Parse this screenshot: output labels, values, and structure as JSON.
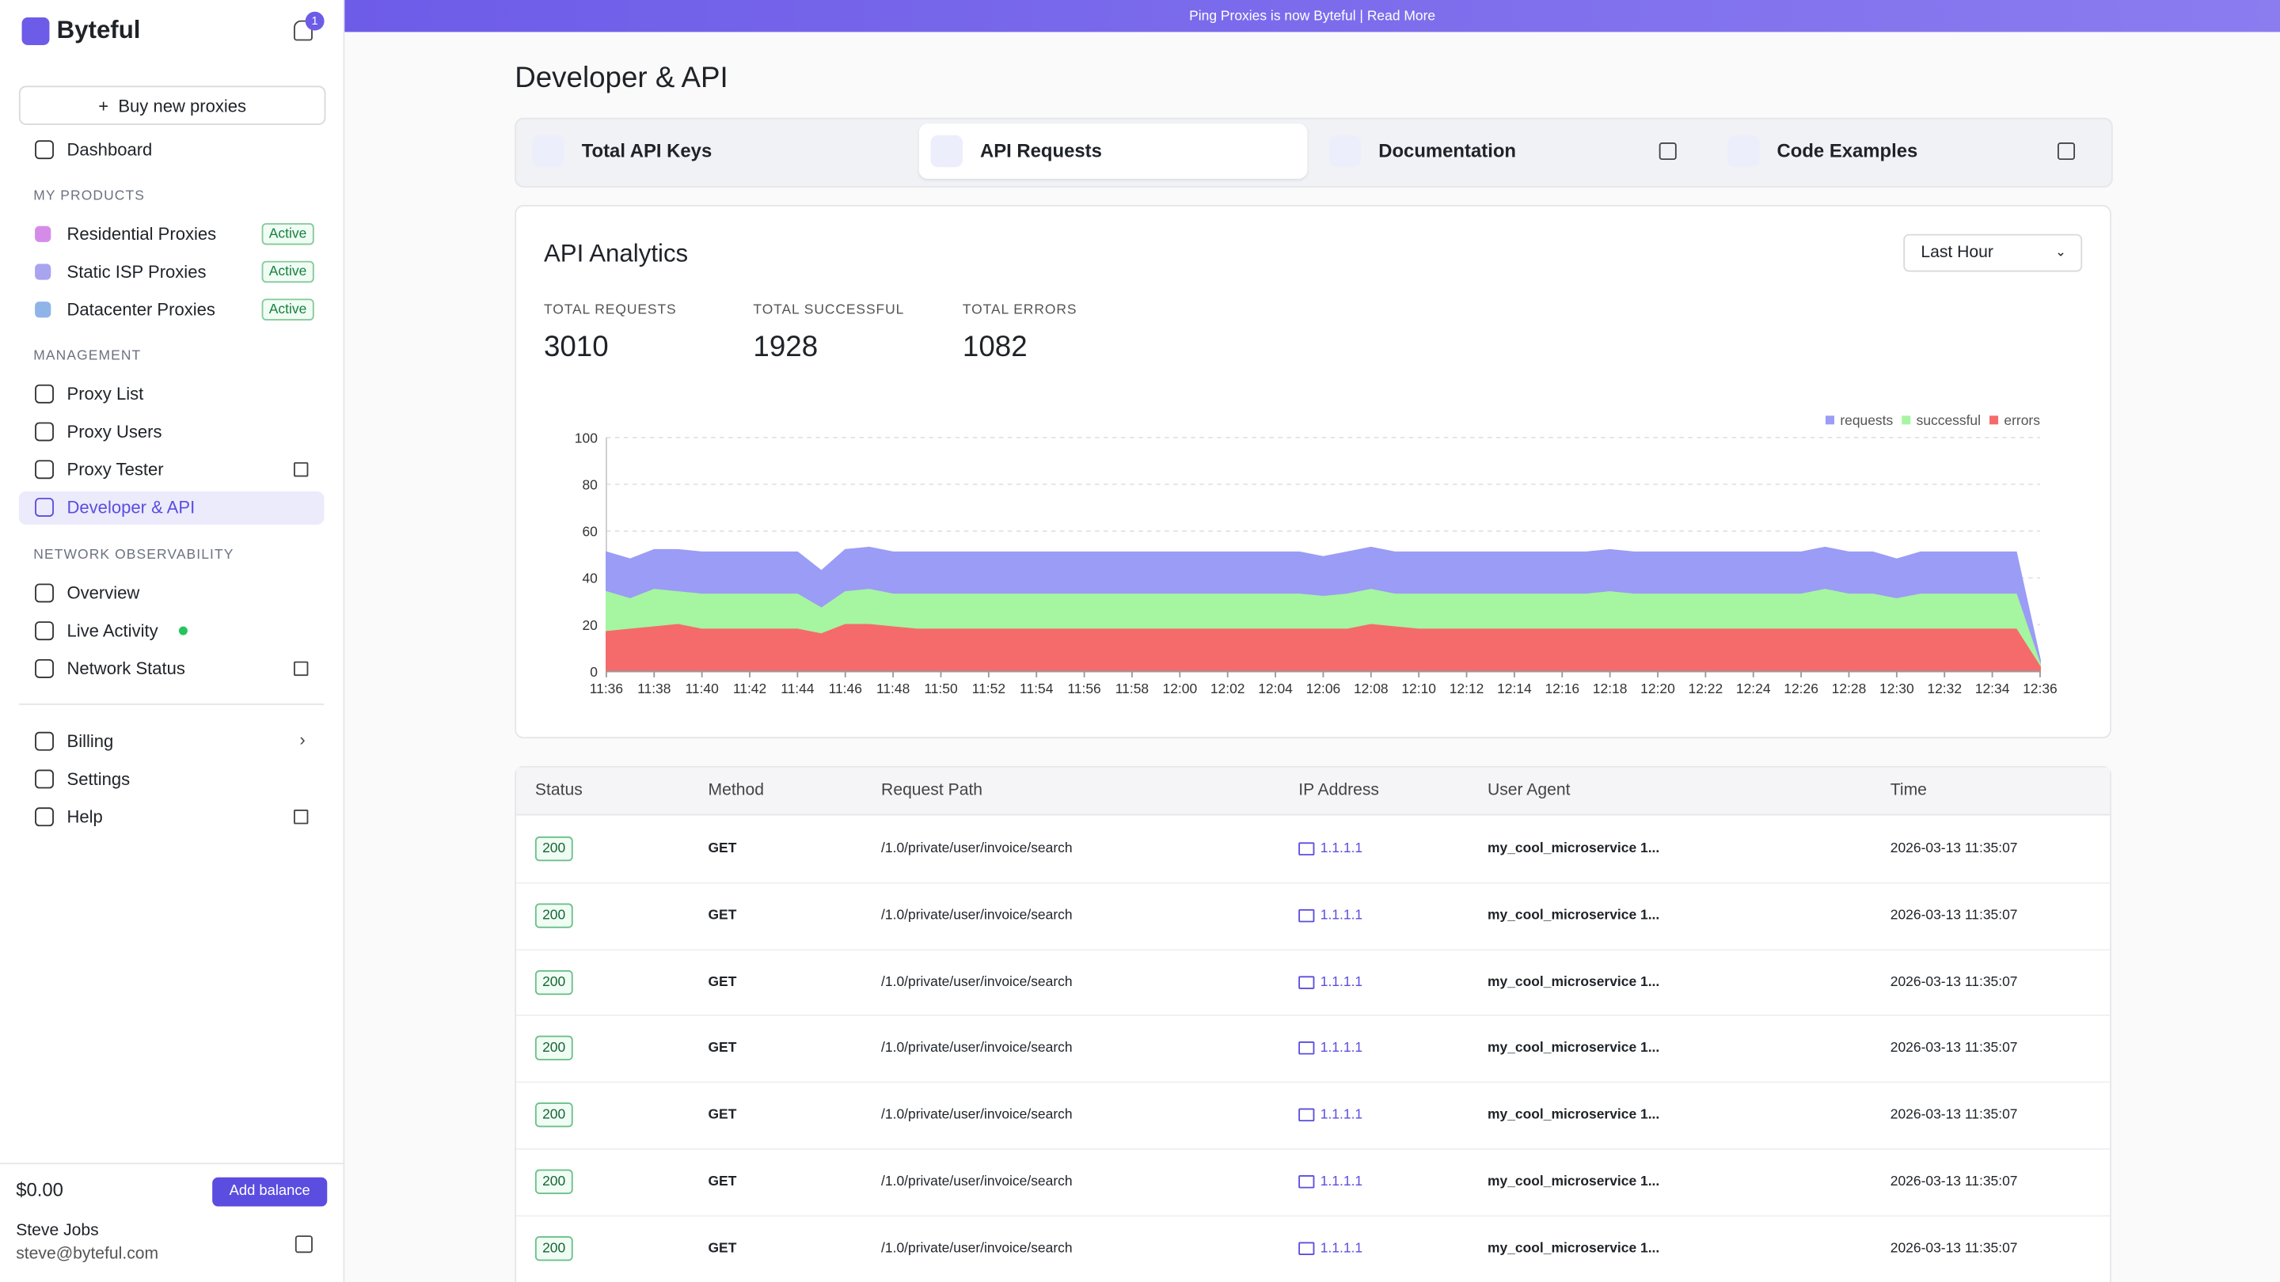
{
  "sidebar": {
    "brand": "Byteful",
    "notifications": 1,
    "buy_button": "Buy new proxies",
    "dashboard": "Dashboard",
    "products": {
      "heading": "MY PRODUCTS",
      "items": [
        {
          "label": "Residential Proxies",
          "badge": "Active"
        },
        {
          "label": "Static ISP Proxies",
          "badge": "Active"
        },
        {
          "label": "Datacenter Proxies",
          "badge": "Active"
        }
      ]
    },
    "management": {
      "heading": "MANAGEMENT",
      "items": [
        "Proxy List",
        "Proxy Users",
        "Proxy Tester",
        "Developer & API"
      ]
    },
    "observability": {
      "heading": "NETWORK OBSERVABILITY",
      "items": [
        "Overview",
        "Live Activity",
        "Network Status"
      ]
    },
    "bottom": [
      "Billing",
      "Settings",
      "Help"
    ],
    "account": {
      "balance": "$0.00",
      "add_balance": "Add balance",
      "name": "Steve Jobs",
      "email": "steve@byteful.com"
    }
  },
  "banner": "Ping Proxies is now Byteful | Read More",
  "page_title": "Developer & API",
  "tabs": [
    "Total API Keys",
    "API Requests",
    "Documentation",
    "Code Examples"
  ],
  "analytics": {
    "title": "API Analytics",
    "range": "Last Hour",
    "stats": [
      {
        "label": "TOTAL REQUESTS",
        "value": 3010
      },
      {
        "label": "TOTAL SUCCESSFUL",
        "value": 1928
      },
      {
        "label": "TOTAL ERRORS",
        "value": 1082
      }
    ]
  },
  "chart_data": {
    "type": "area",
    "categories": [
      "11:36",
      null,
      "11:38",
      null,
      "11:40",
      null,
      "11:42",
      null,
      "11:44",
      null,
      "11:46",
      null,
      "11:48",
      null,
      "11:50",
      null,
      "11:52",
      null,
      "11:54",
      null,
      "11:56",
      null,
      "11:58",
      null,
      "12:00",
      null,
      "12:02",
      null,
      "12:04",
      null,
      "12:06",
      null,
      "12:08",
      null,
      "12:10",
      null,
      "12:12",
      null,
      "12:14",
      null,
      "12:16",
      null,
      "12:18",
      null,
      "12:20",
      null,
      "12:22",
      null,
      "12:24",
      null,
      "12:26",
      null,
      "12:28",
      null,
      "12:30",
      null,
      "12:32",
      null,
      "12:34",
      null,
      "12:36"
    ],
    "series": [
      {
        "name": "requests",
        "color": "#9b9cf5",
        "values": [
          51,
          48,
          52,
          52,
          51,
          51,
          51,
          51,
          51,
          43,
          52,
          53,
          51,
          51,
          51,
          51,
          51,
          51,
          51,
          51,
          51,
          51,
          51,
          51,
          51,
          51,
          51,
          51,
          51,
          51,
          49,
          51,
          53,
          51,
          51,
          51,
          51,
          51,
          51,
          51,
          51,
          51,
          52,
          51,
          51,
          51,
          51,
          51,
          51,
          51,
          51,
          53,
          51,
          51,
          48,
          51,
          51,
          51,
          51,
          51,
          5
        ]
      },
      {
        "name": "successful",
        "color": "#a6f5a0",
        "values": [
          34,
          31,
          35,
          34,
          33,
          33,
          33,
          33,
          33,
          27,
          34,
          35,
          33,
          33,
          33,
          33,
          33,
          33,
          33,
          33,
          33,
          33,
          33,
          33,
          33,
          33,
          33,
          33,
          33,
          33,
          32,
          33,
          35,
          33,
          33,
          33,
          33,
          33,
          33,
          33,
          33,
          33,
          34,
          33,
          33,
          33,
          33,
          33,
          33,
          33,
          33,
          35,
          33,
          33,
          31,
          33,
          33,
          33,
          33,
          33,
          3
        ]
      },
      {
        "name": "errors",
        "color": "#f56b6b",
        "values": [
          17,
          18,
          19,
          20,
          18,
          18,
          18,
          18,
          18,
          16,
          20,
          20,
          19,
          18,
          18,
          18,
          18,
          18,
          18,
          18,
          18,
          18,
          18,
          18,
          18,
          18,
          18,
          18,
          18,
          18,
          18,
          18,
          20,
          19,
          18,
          18,
          18,
          18,
          18,
          18,
          18,
          18,
          18,
          18,
          18,
          18,
          18,
          18,
          18,
          18,
          18,
          18,
          18,
          18,
          18,
          18,
          18,
          18,
          18,
          18,
          2
        ]
      }
    ],
    "ylim": [
      0,
      100
    ],
    "yticks": [
      0,
      20,
      40,
      60,
      80,
      100
    ],
    "grid": true,
    "legend": "top-right"
  },
  "table": {
    "columns": [
      "Status",
      "Method",
      "Request Path",
      "IP Address",
      "User Agent",
      "Time"
    ],
    "rows": [
      [
        "200",
        "GET",
        "/1.0/private/user/invoice/search",
        "1.1.1.1",
        "my_cool_microservice 1...",
        "2026-03-13 11:35:07"
      ],
      [
        "200",
        "GET",
        "/1.0/private/user/invoice/search",
        "1.1.1.1",
        "my_cool_microservice 1...",
        "2026-03-13 11:35:07"
      ],
      [
        "200",
        "GET",
        "/1.0/private/user/invoice/search",
        "1.1.1.1",
        "my_cool_microservice 1...",
        "2026-03-13 11:35:07"
      ],
      [
        "200",
        "GET",
        "/1.0/private/user/invoice/search",
        "1.1.1.1",
        "my_cool_microservice 1...",
        "2026-03-13 11:35:07"
      ],
      [
        "200",
        "GET",
        "/1.0/private/user/invoice/search",
        "1.1.1.1",
        "my_cool_microservice 1...",
        "2026-03-13 11:35:07"
      ],
      [
        "200",
        "GET",
        "/1.0/private/user/invoice/search",
        "1.1.1.1",
        "my_cool_microservice 1...",
        "2026-03-13 11:35:07"
      ],
      [
        "200",
        "GET",
        "/1.0/private/user/invoice/search",
        "1.1.1.1",
        "my_cool_microservice 1...",
        "2026-03-13 11:35:07"
      ]
    ]
  }
}
